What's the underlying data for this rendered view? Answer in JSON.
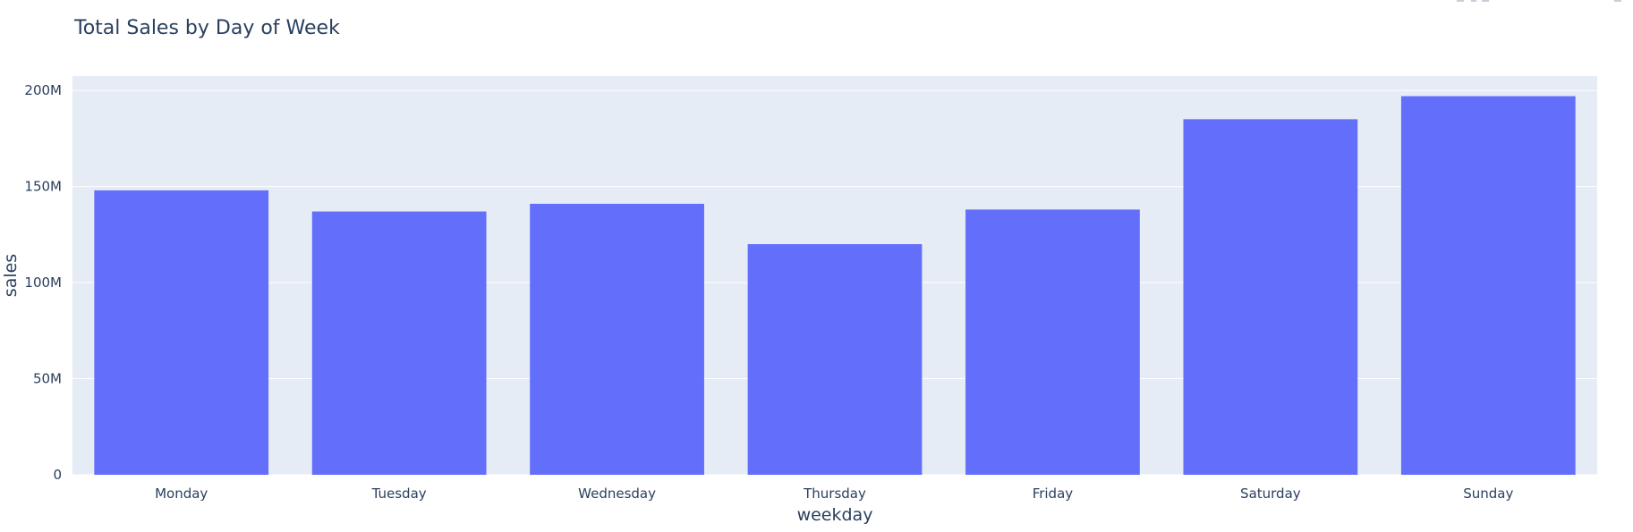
{
  "chart_data": {
    "type": "bar",
    "title": "Total Sales by Day of Week",
    "xlabel": "weekday",
    "ylabel": "sales",
    "categories": [
      "Monday",
      "Tuesday",
      "Wednesday",
      "Thursday",
      "Friday",
      "Saturday",
      "Sunday"
    ],
    "values": [
      148000000,
      137000000,
      141000000,
      120000000,
      138000000,
      185000000,
      197000000
    ],
    "ylim": [
      0,
      207500000
    ],
    "yticks": [
      0,
      50000000,
      100000000,
      150000000,
      200000000
    ],
    "ytick_labels": [
      "0",
      "50M",
      "100M",
      "150M",
      "200M"
    ],
    "grid": true,
    "legend": "none",
    "colors": {
      "bar": "#636efa",
      "plot_bg": "#e5ecf6",
      "text": "#2a3f5f",
      "grid": "#ffffff"
    }
  }
}
